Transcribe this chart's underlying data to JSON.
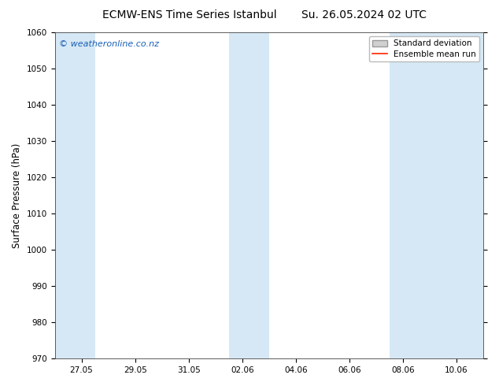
{
  "title_left": "ECMW-ENS Time Series Istanbul",
  "title_right": "Su. 26.05.2024 02 UTC",
  "ylabel": "Surface Pressure (hPa)",
  "ylim": [
    970,
    1060
  ],
  "yticks": [
    970,
    980,
    990,
    1000,
    1010,
    1020,
    1030,
    1040,
    1050,
    1060
  ],
  "xtick_labels": [
    "27.05",
    "29.05",
    "31.05",
    "02.06",
    "04.06",
    "06.06",
    "08.06",
    "10.06"
  ],
  "xtick_positions": [
    0,
    2,
    4,
    6,
    8,
    10,
    12,
    14
  ],
  "shaded_bands": [
    {
      "x_start": -1.0,
      "x_end": 0.5
    },
    {
      "x_start": 5.5,
      "x_end": 7.0
    },
    {
      "x_start": 11.5,
      "x_end": 15.0
    }
  ],
  "band_color": "#d6e8f5",
  "background_color": "#ffffff",
  "plot_bg_color": "#ffffff",
  "watermark_text": "© weatheronline.co.nz",
  "watermark_color": "#1a5eb8",
  "legend_std_label": "Standard deviation",
  "legend_mean_label": "Ensemble mean run",
  "legend_std_facecolor": "#d0d0d0",
  "legend_std_edgecolor": "#999999",
  "legend_mean_color": "#ff2200",
  "title_fontsize": 10,
  "tick_fontsize": 7.5,
  "ylabel_fontsize": 8.5,
  "watermark_fontsize": 8,
  "legend_fontsize": 7.5,
  "xmin": -1.0,
  "xmax": 15.0
}
